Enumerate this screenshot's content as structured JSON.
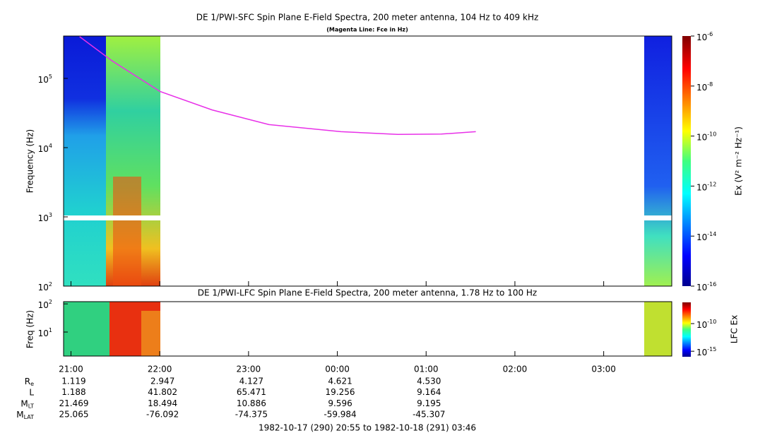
{
  "chart_data": [
    {
      "type": "spectrogram",
      "title": "DE 1/PWI-SFC  Spin Plane E-Field Spectra, 200 meter antenna, 104 Hz to 409 kHz",
      "subtitle": "(Magenta Line: Fce in Hz)",
      "y_label": "Frequency (Hz)",
      "log_y": true,
      "xlim": [
        20.9167,
        27.7667
      ],
      "ylim": [
        100,
        409000
      ],
      "yticks": [
        {
          "value": 100,
          "label": "10",
          "sup": "2"
        },
        {
          "value": 1000,
          "label": "10",
          "sup": "3"
        },
        {
          "value": 10000,
          "label": "10",
          "sup": "4"
        },
        {
          "value": 100000,
          "label": "10",
          "sup": "5"
        }
      ],
      "series": [
        {
          "color": "#e830e8",
          "x": [
            21.097,
            21.46,
            22.0,
            22.59,
            23.23,
            24.04,
            24.68,
            25.17,
            25.56
          ],
          "values": [
            400000,
            180000,
            65000,
            35000,
            21500,
            17000,
            15500,
            15700,
            17000
          ]
        }
      ],
      "colorbar": {
        "label": "Ex (V² m⁻² Hz⁻¹)",
        "clim": [
          1e-16,
          1e-06
        ],
        "ticks": [
          {
            "value": 1e-06,
            "label": "10",
            "sup": "-6"
          },
          {
            "value": 1e-08,
            "label": "10",
            "sup": "-8"
          },
          {
            "value": 1e-10,
            "label": "10",
            "sup": "-10"
          },
          {
            "value": 1e-12,
            "label": "10",
            "sup": "-12"
          },
          {
            "value": 1e-14,
            "label": "10",
            "sup": "-14"
          },
          {
            "value": 1e-16,
            "label": "10",
            "sup": "-16"
          }
        ]
      }
    },
    {
      "type": "spectrogram",
      "title": "DE 1/PWI-LFC  Spin Plane E-Field Spectra, 200 meter antenna, 1.78 Hz to 100 Hz",
      "y_label": "Freq (Hz)",
      "log_y": true,
      "xlim": [
        20.9167,
        27.7667
      ],
      "ylim": [
        1.4,
        120
      ],
      "yticks": [
        {
          "value": 10,
          "label": "10",
          "sup": "1"
        },
        {
          "value": 100,
          "label": "10",
          "sup": "2"
        }
      ],
      "xticks": [
        {
          "value": 21,
          "label": "21:00"
        },
        {
          "value": 22,
          "label": "22:00"
        },
        {
          "value": 23,
          "label": "23:00"
        },
        {
          "value": 24,
          "label": "00:00"
        },
        {
          "value": 25,
          "label": "01:00"
        },
        {
          "value": 26,
          "label": "02:00"
        },
        {
          "value": 27,
          "label": "03:00"
        }
      ],
      "colorbar": {
        "label": "LFC Ex",
        "clim": [
          1e-16,
          7e-07
        ],
        "ticks": [
          {
            "value": 1e-10,
            "label": "10",
            "sup": "-10"
          },
          {
            "value": 1e-15,
            "label": "10",
            "sup": "-15"
          }
        ]
      }
    }
  ],
  "ephemeris": {
    "rows": [
      {
        "label": "R",
        "sub": "e",
        "values": [
          "1.119",
          "2.947",
          "4.127",
          "4.621",
          "4.530"
        ]
      },
      {
        "label": "L",
        "values": [
          "1.188",
          "41.802",
          "65.471",
          "19.256",
          "9.164"
        ]
      },
      {
        "label": "M",
        "sub": "LT",
        "values": [
          "21.469",
          "18.494",
          "10.886",
          "9.596",
          "9.195"
        ]
      },
      {
        "label": "M",
        "sub": "LAT",
        "values": [
          "25.065",
          "-76.092",
          "-74.375",
          "-59.984",
          "-45.307"
        ]
      }
    ],
    "footer": "1982-10-17 (290) 20:55 to 1982-10-18 (291) 03:46"
  }
}
